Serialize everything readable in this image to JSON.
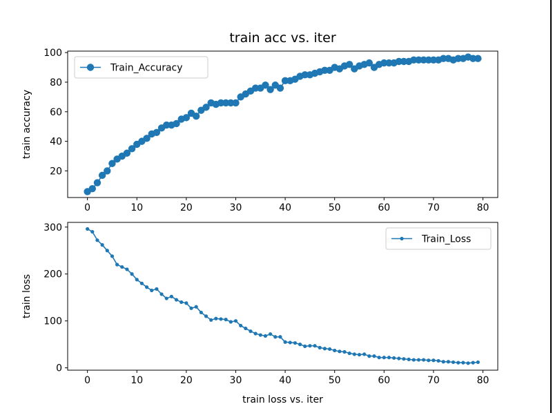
{
  "chart_data": [
    {
      "type": "line",
      "title": "train acc vs. iter",
      "xlabel": "",
      "ylabel": "train accuracy",
      "xlim": [
        -4,
        83
      ],
      "ylim": [
        2,
        101
      ],
      "xticks": [
        "0",
        "10",
        "20",
        "30",
        "40",
        "50",
        "60",
        "70",
        "80"
      ],
      "yticks": [
        "20",
        "40",
        "60",
        "80",
        "100"
      ],
      "legend": {
        "label": "Train_Accuracy",
        "position": "top-left"
      },
      "series": [
        {
          "name": "Train_Accuracy",
          "color": "#1f77b4",
          "marker": "large-circle",
          "x": [
            0,
            1,
            2,
            3,
            4,
            5,
            6,
            7,
            8,
            9,
            10,
            11,
            12,
            13,
            14,
            15,
            16,
            17,
            18,
            19,
            20,
            21,
            22,
            23,
            24,
            25,
            26,
            27,
            28,
            29,
            30,
            31,
            32,
            33,
            34,
            35,
            36,
            37,
            38,
            39,
            40,
            41,
            42,
            43,
            44,
            45,
            46,
            47,
            48,
            49,
            50,
            51,
            52,
            53,
            54,
            55,
            56,
            57,
            58,
            59,
            60,
            61,
            62,
            63,
            64,
            65,
            66,
            67,
            68,
            69,
            70,
            71,
            72,
            73,
            74,
            75,
            76,
            77,
            78,
            79
          ],
          "values": [
            6,
            8,
            12,
            17,
            20,
            25,
            28,
            30,
            32,
            35,
            38,
            40,
            42,
            45,
            46,
            49,
            51,
            51,
            52,
            55,
            56,
            59,
            57,
            61,
            63,
            66,
            65,
            66,
            66,
            66,
            66,
            70,
            72,
            74,
            76,
            76,
            78,
            75,
            78,
            76,
            81,
            81,
            82,
            84,
            85,
            85,
            86,
            87,
            88,
            88,
            90,
            89,
            91,
            92,
            89,
            91,
            92,
            93,
            90,
            92,
            93,
            93,
            93,
            94,
            94,
            94,
            95,
            95,
            95,
            95,
            95,
            95,
            96,
            96,
            95,
            96,
            96,
            97,
            96,
            96
          ]
        }
      ]
    },
    {
      "type": "line",
      "title": "",
      "xlabel": "train loss vs. iter",
      "ylabel": "train loss",
      "xlim": [
        -4,
        83
      ],
      "ylim": [
        -5,
        310
      ],
      "xticks": [
        "0",
        "10",
        "20",
        "30",
        "40",
        "50",
        "60",
        "70",
        "80"
      ],
      "yticks": [
        "0",
        "100",
        "200",
        "300"
      ],
      "legend": {
        "label": "Train_Loss",
        "position": "top-right"
      },
      "series": [
        {
          "name": "Train_Loss",
          "color": "#1f77b4",
          "marker": "small-circle",
          "x": [
            0,
            1,
            2,
            3,
            4,
            5,
            6,
            7,
            8,
            9,
            10,
            11,
            12,
            13,
            14,
            15,
            16,
            17,
            18,
            19,
            20,
            21,
            22,
            23,
            24,
            25,
            26,
            27,
            28,
            29,
            30,
            31,
            32,
            33,
            34,
            35,
            36,
            37,
            38,
            39,
            40,
            41,
            42,
            43,
            44,
            45,
            46,
            47,
            48,
            49,
            50,
            51,
            52,
            53,
            54,
            55,
            56,
            57,
            58,
            59,
            60,
            61,
            62,
            63,
            64,
            65,
            66,
            67,
            68,
            69,
            70,
            71,
            72,
            73,
            74,
            75,
            76,
            77,
            78,
            79
          ],
          "values": [
            296,
            290,
            272,
            262,
            250,
            238,
            220,
            215,
            210,
            200,
            188,
            180,
            172,
            165,
            168,
            157,
            148,
            152,
            145,
            140,
            138,
            127,
            130,
            118,
            110,
            102,
            105,
            104,
            103,
            98,
            100,
            90,
            84,
            78,
            73,
            70,
            68,
            72,
            66,
            66,
            55,
            54,
            53,
            50,
            46,
            47,
            47,
            43,
            41,
            40,
            37,
            35,
            34,
            31,
            29,
            28,
            29,
            25,
            25,
            22,
            22,
            22,
            21,
            20,
            19,
            18,
            17,
            17,
            17,
            16,
            16,
            15,
            13,
            13,
            12,
            11,
            11,
            10,
            11,
            12
          ]
        }
      ]
    }
  ]
}
